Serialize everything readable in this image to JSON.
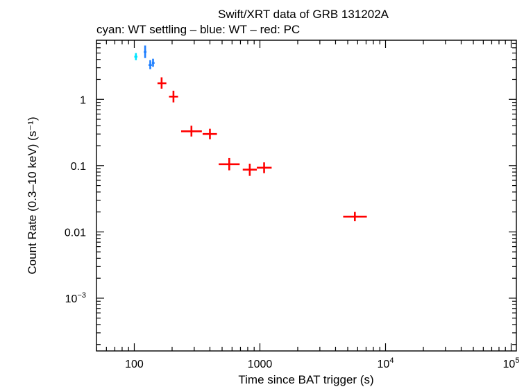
{
  "chart_data": {
    "type": "scatter",
    "title": "Swift/XRT data of GRB 131202A",
    "subtitle": "cyan: WT settling – blue: WT – red: PC",
    "xlabel": "Time since BAT trigger (s)",
    "ylabel": "Count Rate (0.3–10 keV) (s⁻¹)",
    "xscale": "log",
    "yscale": "log",
    "xlim": [
      50,
      110000
    ],
    "ylim": [
      0.00016,
      7.8
    ],
    "x_ticks": [
      {
        "value": 100,
        "label": "100",
        "sup": ""
      },
      {
        "value": 1000,
        "label": "1000",
        "sup": ""
      },
      {
        "value": 10000,
        "label": "10",
        "sup": "4"
      },
      {
        "value": 100000,
        "label": "10",
        "sup": "5"
      }
    ],
    "y_ticks": [
      {
        "value": 1,
        "label": "1",
        "sup": ""
      },
      {
        "value": 0.1,
        "label": "0.1",
        "sup": ""
      },
      {
        "value": 0.01,
        "label": "0.01",
        "sup": ""
      },
      {
        "value": 0.001,
        "label": "10",
        "sup": "−3"
      }
    ],
    "series": [
      {
        "name": "WT settling",
        "color": "#00e5ff",
        "points": [
          {
            "x": 103,
            "xlo": 100,
            "xhi": 106,
            "y": 4.4,
            "ylo": 3.9,
            "yhi": 5.0
          }
        ]
      },
      {
        "name": "WT",
        "color": "#1f7fff",
        "points": [
          {
            "x": 122,
            "xlo": 119,
            "xhi": 125,
            "y": 5.2,
            "ylo": 4.2,
            "yhi": 6.5
          },
          {
            "x": 134,
            "xlo": 130,
            "xhi": 138,
            "y": 3.3,
            "ylo": 2.85,
            "yhi": 3.9
          },
          {
            "x": 141,
            "xlo": 138,
            "xhi": 145,
            "y": 3.55,
            "ylo": 3.1,
            "yhi": 4.1
          }
        ]
      },
      {
        "name": "PC",
        "color": "#ff0000",
        "points": [
          {
            "x": 165,
            "xlo": 153,
            "xhi": 180,
            "y": 1.75,
            "ylo": 1.45,
            "yhi": 2.15
          },
          {
            "x": 205,
            "xlo": 189,
            "xhi": 223,
            "y": 1.1,
            "ylo": 0.9,
            "yhi": 1.35
          },
          {
            "x": 285,
            "xlo": 236,
            "xhi": 345,
            "y": 0.33,
            "ylo": 0.275,
            "yhi": 0.4
          },
          {
            "x": 400,
            "xlo": 350,
            "xhi": 455,
            "y": 0.3,
            "ylo": 0.25,
            "yhi": 0.36
          },
          {
            "x": 570,
            "xlo": 470,
            "xhi": 690,
            "y": 0.105,
            "ylo": 0.085,
            "yhi": 0.13
          },
          {
            "x": 830,
            "xlo": 730,
            "xhi": 945,
            "y": 0.087,
            "ylo": 0.07,
            "yhi": 0.107
          },
          {
            "x": 1080,
            "xlo": 945,
            "xhi": 1240,
            "y": 0.093,
            "ylo": 0.077,
            "yhi": 0.112
          },
          {
            "x": 5700,
            "xlo": 4600,
            "xhi": 7100,
            "y": 0.017,
            "ylo": 0.0145,
            "yhi": 0.02
          }
        ]
      }
    ]
  }
}
